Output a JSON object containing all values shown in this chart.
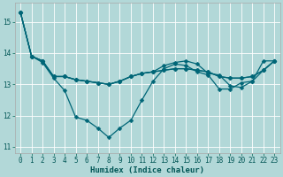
{
  "xlabel": "Humidex (Indice chaleur)",
  "background_color": "#b2d8d8",
  "grid_color": "#ffffff",
  "line_color": "#006677",
  "xlim": [
    -0.5,
    23.5
  ],
  "ylim": [
    10.8,
    15.6
  ],
  "yticks": [
    11,
    12,
    13,
    14,
    15
  ],
  "xticks": [
    0,
    1,
    2,
    3,
    4,
    5,
    6,
    7,
    8,
    9,
    10,
    11,
    12,
    13,
    14,
    15,
    16,
    17,
    18,
    19,
    20,
    21,
    22,
    23
  ],
  "series": [
    [
      15.3,
      13.9,
      13.7,
      13.2,
      12.8,
      11.95,
      11.85,
      11.6,
      11.3,
      11.6,
      11.85,
      12.5,
      13.1,
      13.5,
      13.65,
      13.6,
      13.4,
      13.3,
      12.85,
      12.85,
      13.05,
      13.1,
      13.75,
      13.75
    ],
    [
      15.3,
      13.9,
      13.75,
      13.25,
      13.25,
      13.15,
      13.1,
      13.05,
      13.0,
      13.1,
      13.25,
      13.35,
      13.4,
      13.45,
      13.5,
      13.5,
      13.45,
      13.4,
      13.25,
      13.2,
      13.2,
      13.25,
      13.45,
      13.75
    ],
    [
      15.3,
      13.9,
      13.75,
      13.25,
      13.25,
      13.15,
      13.1,
      13.05,
      13.0,
      13.1,
      13.25,
      13.35,
      13.4,
      13.6,
      13.7,
      13.75,
      13.65,
      13.35,
      13.3,
      12.95,
      12.9,
      13.1,
      13.45,
      13.75
    ],
    [
      15.3,
      13.9,
      13.75,
      13.25,
      13.25,
      13.15,
      13.1,
      13.05,
      13.0,
      13.1,
      13.25,
      13.35,
      13.4,
      13.45,
      13.5,
      13.5,
      13.45,
      13.4,
      13.25,
      13.2,
      13.2,
      13.25,
      13.45,
      13.75
    ]
  ],
  "marker_size": 2.5,
  "line_width": 0.9,
  "tick_fontsize": 5.5,
  "xlabel_fontsize": 6.5,
  "xlabel_bold": true
}
